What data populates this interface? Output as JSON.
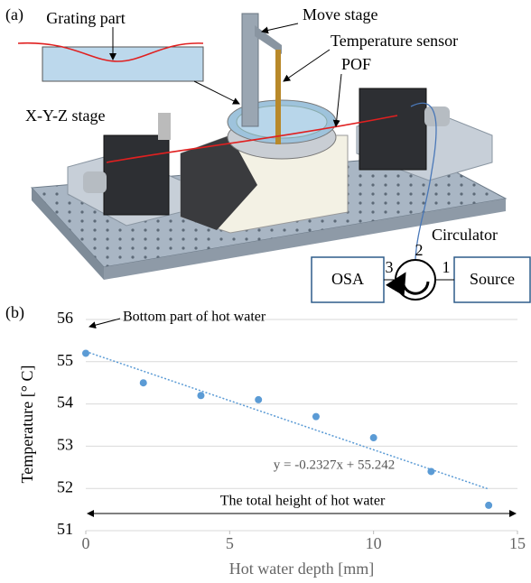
{
  "panel_a": {
    "label": "(a)",
    "grating_part": "Grating part",
    "move_stage": "Move stage",
    "temperature_sensor": "Temperature sensor",
    "pof": "POF",
    "xyz_stage": "X-Y-Z stage",
    "circulator": "Circulator",
    "osa": "OSA",
    "source": "Source",
    "port_3": "3",
    "port_2": "2",
    "port_1": "1"
  },
  "chart_data": {
    "type": "scatter",
    "panel_label": "(b)",
    "x_label": "Hot water depth [mm]",
    "y_label": "Temperature [° C]",
    "x": [
      0,
      2,
      4,
      6,
      8,
      10,
      12,
      14
    ],
    "values": [
      55.2,
      54.5,
      54.2,
      54.1,
      53.7,
      53.2,
      52.4,
      51.6
    ],
    "color": "#5b9bd5",
    "xlim": [
      0,
      15
    ],
    "xticks": [
      0,
      5,
      10,
      15
    ],
    "ylim": [
      51,
      56
    ],
    "yticks": [
      51,
      52,
      53,
      54,
      55,
      56
    ],
    "grid": true,
    "trendline": {
      "slope": -0.2327,
      "intercept": 55.242,
      "label": "y = -0.2327x + 55.242"
    },
    "annotations": [
      "Bottom part of hot water",
      "The total height of hot water"
    ]
  }
}
